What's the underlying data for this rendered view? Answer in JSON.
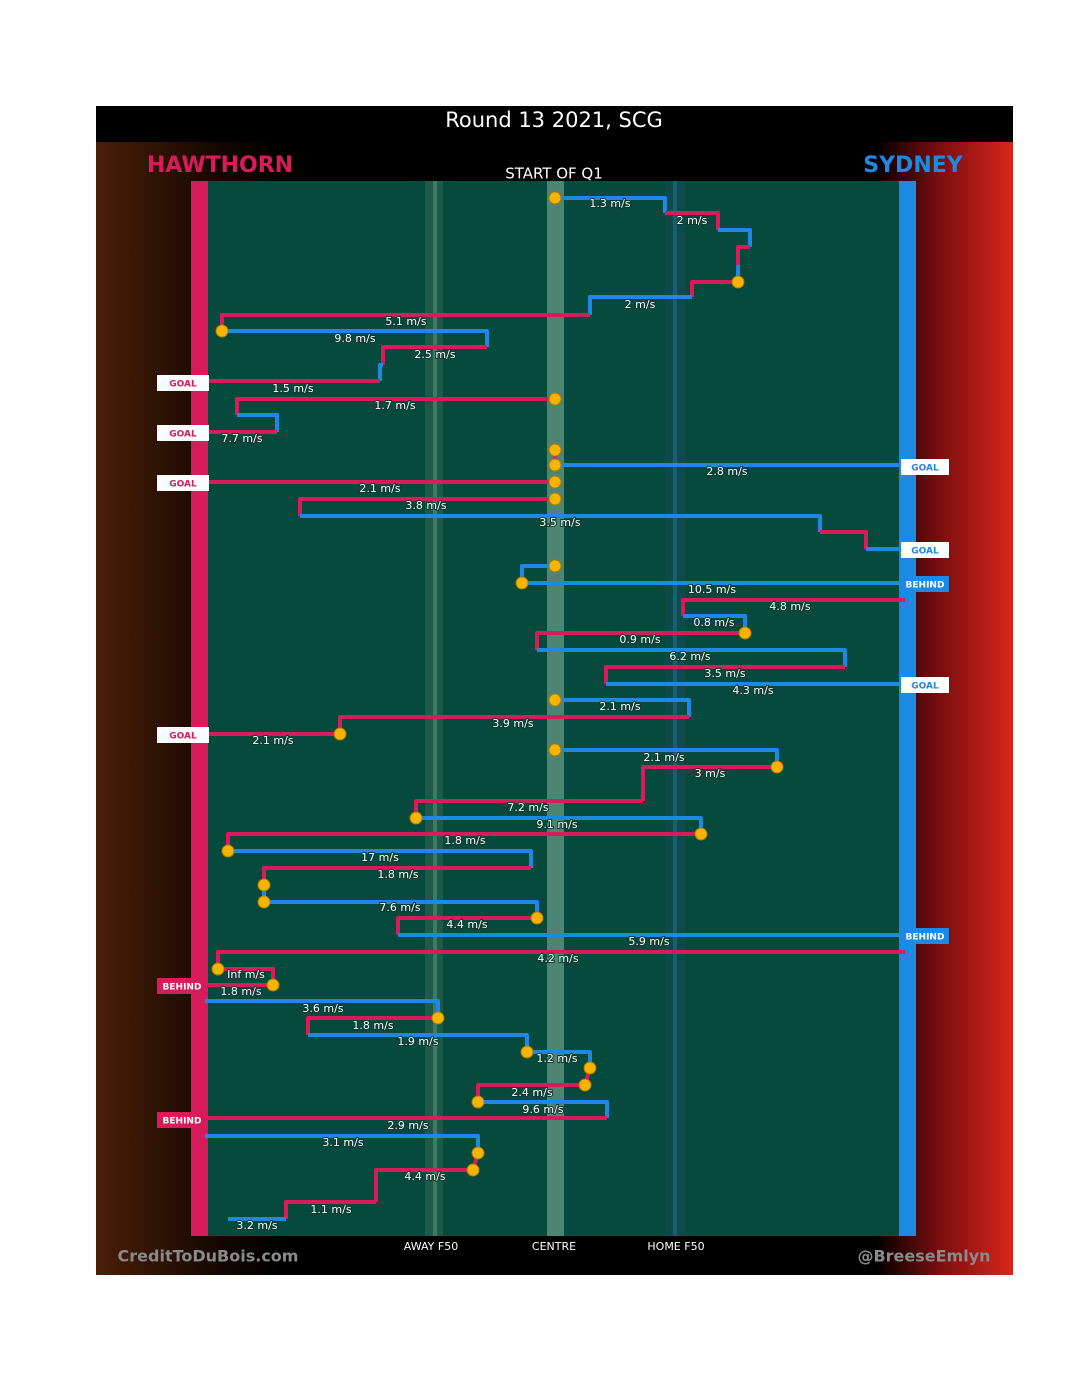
{
  "title": "Round 13 2021, SCG",
  "teams": {
    "left": "HAWTHORN",
    "right": "SYDNEY"
  },
  "start_label": "START OF Q1",
  "field_labels": [
    "AWAY F50",
    "CENTRE",
    "HOME F50"
  ],
  "credits": [
    "CreditToDuBois.com",
    "@BreeseEmlyn"
  ],
  "passes": [
    "1.3 m/s",
    "2 m/s",
    "2 m/s",
    "5.1 m/s",
    "9.8 m/s",
    "2.5 m/s",
    "1.5 m/s",
    "1.7 m/s",
    "7.7 m/s",
    "2.8 m/s",
    "2.1 m/s",
    "3.8 m/s",
    "3.5 m/s",
    "10.5 m/s",
    "4.8 m/s",
    "0.8 m/s",
    "0.9 m/s",
    "6.2 m/s",
    "3.5 m/s",
    "4.3 m/s",
    "2.1 m/s",
    "3.9 m/s",
    "2.1 m/s",
    "2.1 m/s",
    "3 m/s",
    "7.2 m/s",
    "9.1 m/s",
    "1.8 m/s",
    "17 m/s",
    "1.8 m/s",
    "7.6 m/s",
    "4.4 m/s",
    "5.9 m/s",
    "4.2 m/s",
    "Inf m/s",
    "1.8 m/s",
    "3.6 m/s",
    "1.8 m/s",
    "1.9 m/s",
    "1.2 m/s",
    "2.4 m/s",
    "9.6 m/s",
    "2.9 m/s",
    "3.1 m/s",
    "4.4 m/s",
    "1.1 m/s",
    "3.2 m/s"
  ],
  "outcomes": [
    "GOAL",
    "GOAL",
    "GOAL",
    "GOAL",
    "GOAL",
    "GOAL",
    "GOAL",
    "BEHIND",
    "BEHIND",
    "BEHIND",
    "BEHIND"
  ],
  "colors": {
    "left": "#d81b5a",
    "right": "#1e88e5"
  }
}
